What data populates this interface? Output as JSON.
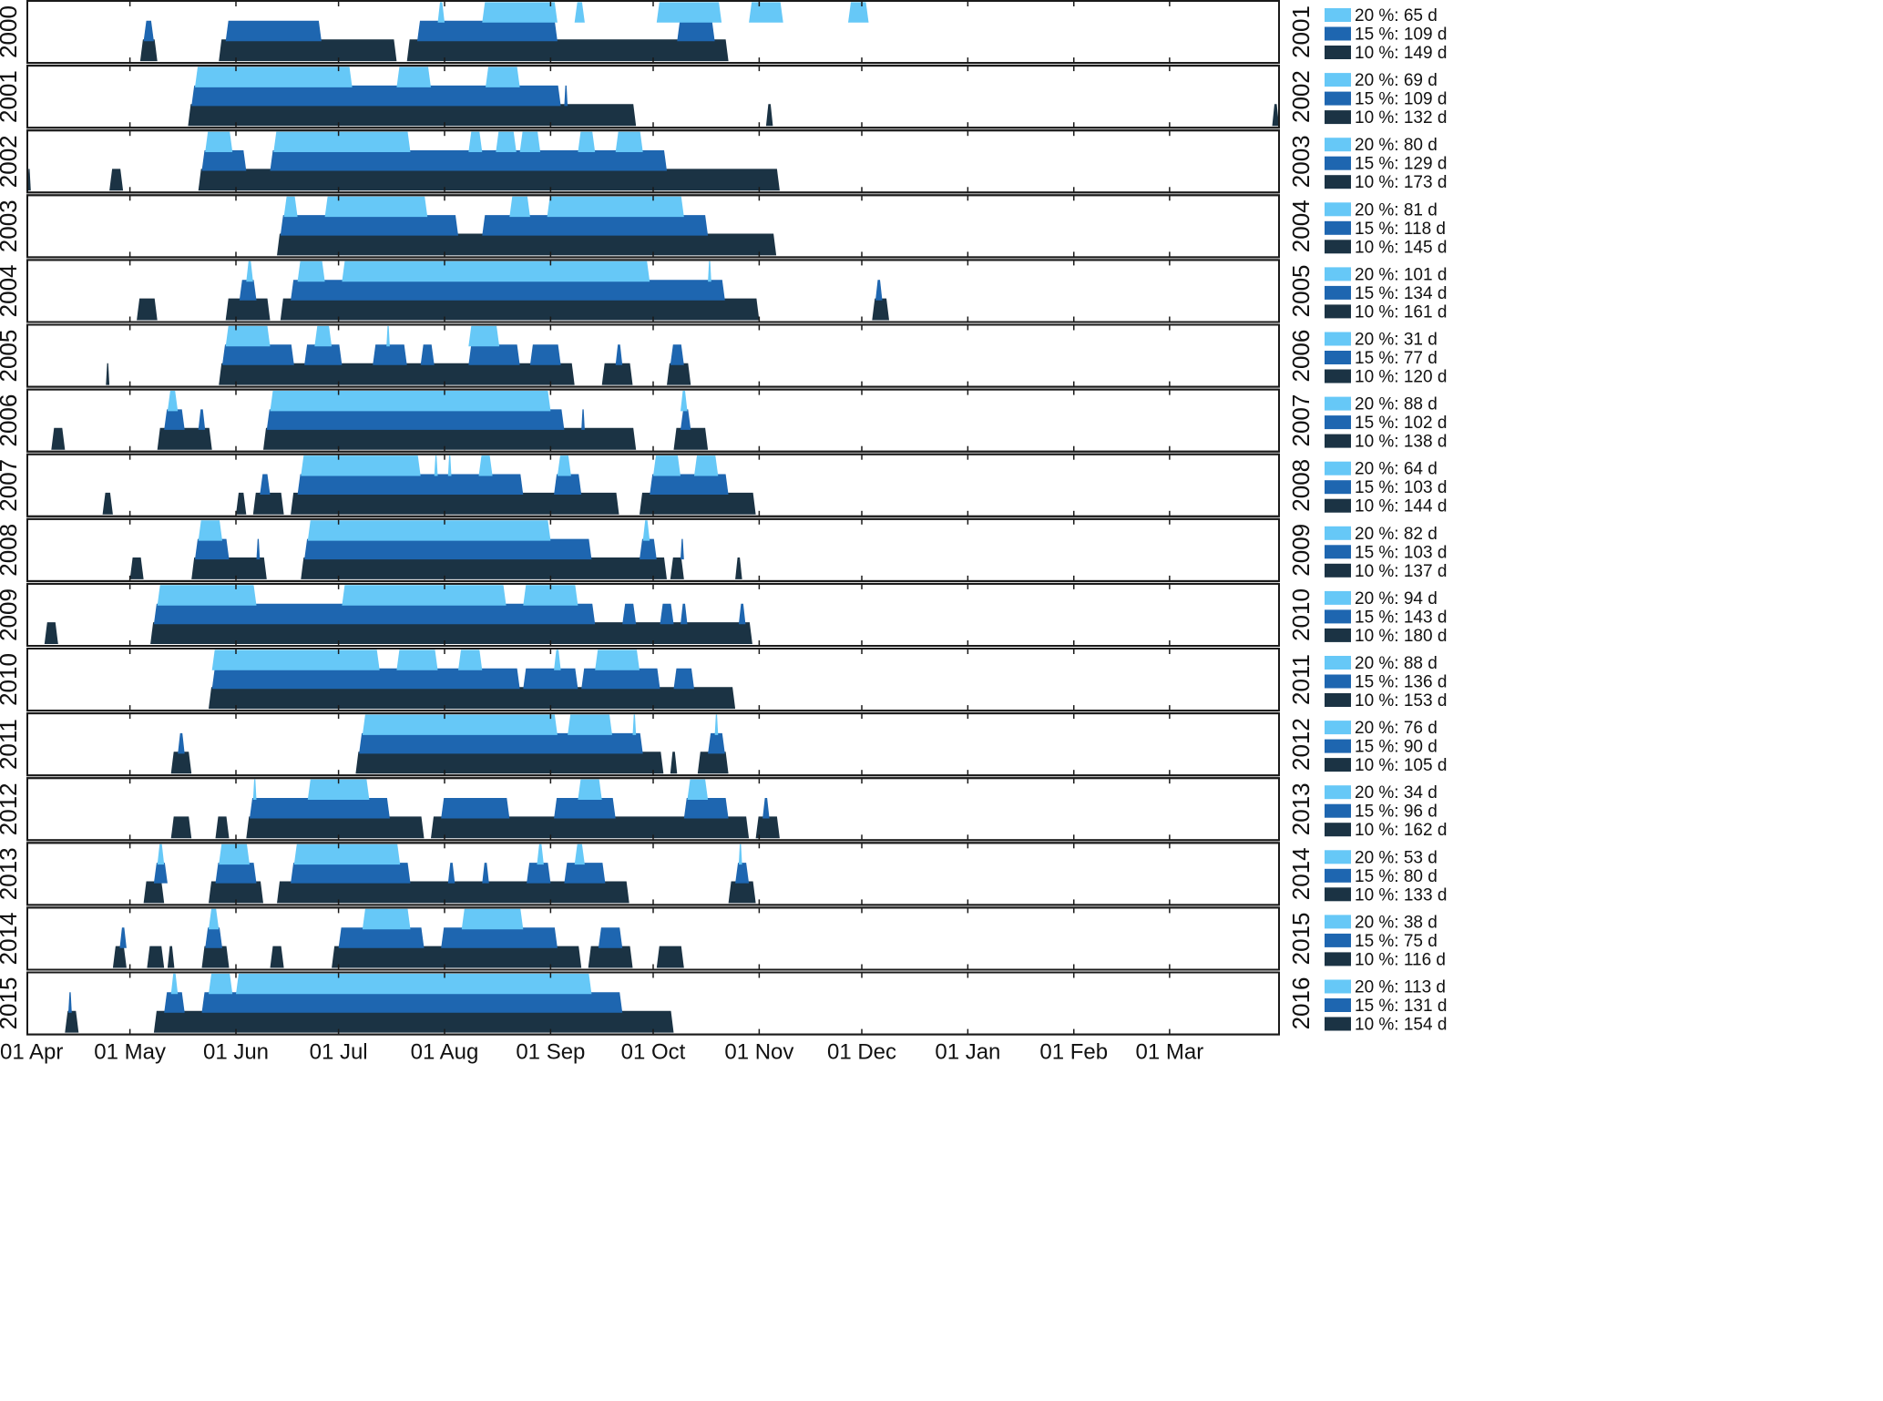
{
  "chart_data": {
    "type": "area",
    "title": "",
    "xlabel": "",
    "ylabel": "",
    "x_tick_labels": [
      "01 Apr",
      "01 May",
      "01 Jun",
      "01 Jul",
      "01 Aug",
      "01 Sep",
      "01 Oct",
      "01 Nov",
      "01 Dec",
      "01 Jan",
      "01 Feb",
      "01 Mar"
    ],
    "x_range_days": [
      0,
      366
    ],
    "legend_placement": "right of each panel",
    "colors": {
      "t20": "#66c8f7",
      "t15": "#1e66b0",
      "t10": "#1b3344"
    },
    "panels": [
      {
        "season": "2000",
        "right_year": "2001",
        "legend": [
          "20 %: 65 d",
          "15 %: 109 d",
          "10 %: 149 d"
        ],
        "t20": [
          [
            120,
            122
          ],
          [
            133,
            155
          ],
          [
            160,
            163
          ],
          [
            184,
            203
          ],
          [
            211,
            221
          ],
          [
            240,
            246
          ]
        ],
        "t15": [
          [
            34,
            37
          ],
          [
            58,
            86
          ],
          [
            114,
            155
          ],
          [
            190,
            201
          ]
        ],
        "t10": [
          [
            33,
            38
          ],
          [
            56,
            108
          ],
          [
            111,
            205
          ]
        ]
      },
      {
        "season": "2001",
        "right_year": "2002",
        "legend": [
          "20 %: 69 d",
          "15 %: 109 d",
          "10 %: 132 d"
        ],
        "t20": [
          [
            49,
            95
          ],
          [
            108,
            118
          ],
          [
            134,
            144
          ]
        ],
        "t15": [
          [
            48,
            156
          ],
          [
            157,
            158
          ]
        ],
        "t10": [
          [
            47,
            178
          ],
          [
            216,
            218
          ],
          [
            364,
            366
          ]
        ]
      },
      {
        "season": "2002",
        "right_year": "2003",
        "legend": [
          "20 %: 80 d",
          "15 %: 129 d",
          "10 %: 173 d"
        ],
        "t20": [
          [
            52,
            60
          ],
          [
            72,
            112
          ],
          [
            129,
            133
          ],
          [
            137,
            143
          ],
          [
            144,
            150
          ],
          [
            161,
            166
          ],
          [
            172,
            180
          ]
        ],
        "t15": [
          [
            51,
            64
          ],
          [
            71,
            187
          ]
        ],
        "t10": [
          [
            0,
            1
          ],
          [
            24,
            28
          ],
          [
            50,
            220
          ]
        ]
      },
      {
        "season": "2003",
        "right_year": "2004",
        "legend": [
          "20 %: 81 d",
          "15 %: 118 d",
          "10 %: 145 d"
        ],
        "t20": [
          [
            75,
            79
          ],
          [
            87,
            117
          ],
          [
            141,
            147
          ],
          [
            152,
            192
          ]
        ],
        "t15": [
          [
            74,
            126
          ],
          [
            133,
            199
          ]
        ],
        "t10": [
          [
            73,
            219
          ]
        ]
      },
      {
        "season": "2004",
        "right_year": "2005",
        "legend": [
          "20 %: 101 d",
          "15 %: 134 d",
          "10 %: 161 d"
        ],
        "t20": [
          [
            64,
            66
          ],
          [
            79,
            87
          ],
          [
            92,
            182
          ],
          [
            199,
            200
          ]
        ],
        "t15": [
          [
            62,
            67
          ],
          [
            77,
            204
          ],
          [
            248,
            250
          ]
        ],
        "t10": [
          [
            32,
            38
          ],
          [
            58,
            71
          ],
          [
            74,
            214
          ],
          [
            247,
            252
          ]
        ]
      },
      {
        "season": "2005",
        "right_year": "2006",
        "legend": [
          "20 %: 31 d",
          "15 %: 77 d",
          "10 %: 120 d"
        ],
        "t20": [
          [
            58,
            71
          ],
          [
            84,
            89
          ],
          [
            105,
            106
          ],
          [
            129,
            138
          ]
        ],
        "t15": [
          [
            57,
            78
          ],
          [
            81,
            92
          ],
          [
            101,
            111
          ],
          [
            115,
            119
          ],
          [
            129,
            144
          ],
          [
            147,
            156
          ],
          [
            172,
            174
          ],
          [
            188,
            192
          ]
        ],
        "t10": [
          [
            23,
            24
          ],
          [
            56,
            160
          ],
          [
            168,
            177
          ],
          [
            187,
            194
          ]
        ]
      },
      {
        "season": "2006",
        "right_year": "2007",
        "legend": [
          "20 %: 88 d",
          "15 %: 102 d",
          "10 %: 138 d"
        ],
        "t20": [
          [
            41,
            44
          ],
          [
            71,
            153
          ],
          [
            191,
            193
          ]
        ],
        "t15": [
          [
            40,
            46
          ],
          [
            50,
            52
          ],
          [
            70,
            157
          ],
          [
            162,
            163
          ],
          [
            191,
            194
          ]
        ],
        "t10": [
          [
            7,
            11
          ],
          [
            38,
            54
          ],
          [
            69,
            178
          ],
          [
            189,
            199
          ]
        ]
      },
      {
        "season": "2007",
        "right_year": "2008",
        "legend": [
          "20 %: 64 d",
          "15 %: 103 d",
          "10 %: 144 d"
        ],
        "t20": [
          [
            80,
            115
          ],
          [
            119,
            120
          ],
          [
            123,
            124
          ],
          [
            132,
            136
          ],
          [
            155,
            159
          ],
          [
            183,
            191
          ],
          [
            195,
            202
          ]
        ],
        "t15": [
          [
            68,
            71
          ],
          [
            79,
            145
          ],
          [
            154,
            162
          ],
          [
            182,
            205
          ]
        ],
        "t10": [
          [
            22,
            25
          ],
          [
            61,
            64
          ],
          [
            66,
            75
          ],
          [
            77,
            173
          ],
          [
            179,
            213
          ]
        ]
      },
      {
        "season": "2008",
        "right_year": "2009",
        "legend": [
          "20 %: 82 d",
          "15 %: 103 d",
          "10 %: 137 d"
        ],
        "t20": [
          [
            50,
            57
          ],
          [
            82,
            153
          ],
          [
            180,
            182
          ]
        ],
        "t15": [
          [
            49,
            59
          ],
          [
            67,
            68
          ],
          [
            81,
            165
          ],
          [
            179,
            184
          ],
          [
            191,
            192
          ]
        ],
        "t10": [
          [
            30,
            34
          ],
          [
            48,
            70
          ],
          [
            80,
            187
          ],
          [
            188,
            192
          ],
          [
            207,
            209
          ]
        ]
      },
      {
        "season": "2009",
        "right_year": "2010",
        "legend": [
          "20 %: 94 d",
          "15 %: 143 d",
          "10 %: 180 d"
        ],
        "t20": [
          [
            38,
            67
          ],
          [
            92,
            140
          ],
          [
            145,
            161
          ]
        ],
        "t15": [
          [
            37,
            166
          ],
          [
            174,
            178
          ],
          [
            185,
            189
          ],
          [
            191,
            193
          ],
          [
            208,
            210
          ]
        ],
        "t10": [
          [
            5,
            9
          ],
          [
            36,
            212
          ]
        ]
      },
      {
        "season": "2010",
        "right_year": "2011",
        "legend": [
          "20 %: 88 d",
          "15 %: 136 d",
          "10 %: 153 d"
        ],
        "t20": [
          [
            54,
            103
          ],
          [
            108,
            120
          ],
          [
            126,
            133
          ],
          [
            154,
            156
          ],
          [
            166,
            179
          ]
        ],
        "t15": [
          [
            54,
            144
          ],
          [
            145,
            161
          ],
          [
            162,
            185
          ],
          [
            189,
            195
          ]
        ],
        "t10": [
          [
            53,
            207
          ]
        ]
      },
      {
        "season": "2011",
        "right_year": "2012",
        "legend": [
          "20 %: 76 d",
          "15 %: 90 d",
          "10 %: 105 d"
        ],
        "t20": [
          [
            98,
            155
          ],
          [
            158,
            171
          ],
          [
            177,
            178
          ],
          [
            201,
            202
          ]
        ],
        "t15": [
          [
            44,
            46
          ],
          [
            97,
            180
          ],
          [
            199,
            204
          ]
        ],
        "t10": [
          [
            42,
            48
          ],
          [
            96,
            186
          ],
          [
            188,
            190
          ],
          [
            196,
            205
          ]
        ]
      },
      {
        "season": "2012",
        "right_year": "2013",
        "legend": [
          "20 %: 34 d",
          "15 %: 96 d",
          "10 %: 162 d"
        ],
        "t20": [
          [
            66,
            67
          ],
          [
            82,
            100
          ],
          [
            161,
            168
          ],
          [
            193,
            199
          ]
        ],
        "t15": [
          [
            65,
            106
          ],
          [
            121,
            141
          ],
          [
            154,
            172
          ],
          [
            192,
            205
          ],
          [
            215,
            217
          ]
        ],
        "t10": [
          [
            42,
            48
          ],
          [
            55,
            59
          ],
          [
            64,
            116
          ],
          [
            118,
            211
          ],
          [
            213,
            220
          ]
        ]
      },
      {
        "season": "2013",
        "right_year": "2014",
        "legend": [
          "20 %: 53 d",
          "15 %: 80 d",
          "10 %: 133 d"
        ],
        "t20": [
          [
            38,
            40
          ],
          [
            56,
            65
          ],
          [
            78,
            109
          ],
          [
            149,
            151
          ],
          [
            160,
            163
          ],
          [
            208,
            209
          ]
        ],
        "t15": [
          [
            37,
            41
          ],
          [
            55,
            67
          ],
          [
            77,
            112
          ],
          [
            123,
            125
          ],
          [
            133,
            135
          ],
          [
            146,
            153
          ],
          [
            157,
            169
          ],
          [
            207,
            211
          ]
        ],
        "t10": [
          [
            34,
            40
          ],
          [
            53,
            69
          ],
          [
            73,
            176
          ],
          [
            205,
            213
          ]
        ]
      },
      {
        "season": "2014",
        "right_year": "2015",
        "legend": [
          "20 %: 38 d",
          "15 %: 75 d",
          "10 %: 116 d"
        ],
        "t20": [
          [
            53,
            56
          ],
          [
            98,
            112
          ],
          [
            127,
            145
          ]
        ],
        "t15": [
          [
            27,
            29
          ],
          [
            52,
            57
          ],
          [
            91,
            116
          ],
          [
            121,
            155
          ],
          [
            167,
            174
          ]
        ],
        "t10": [
          [
            25,
            29
          ],
          [
            35,
            40
          ],
          [
            41,
            43
          ],
          [
            51,
            59
          ],
          [
            71,
            75
          ],
          [
            89,
            162
          ],
          [
            164,
            177
          ],
          [
            184,
            192
          ]
        ]
      },
      {
        "season": "2015",
        "right_year": "2016",
        "legend": [
          "20 %: 113 d",
          "15 %: 131 d",
          "10 %: 154 d"
        ],
        "t20": [
          [
            42,
            44
          ],
          [
            53,
            60
          ],
          [
            61,
            165
          ]
        ],
        "t15": [
          [
            12,
            13
          ],
          [
            40,
            46
          ],
          [
            51,
            174
          ]
        ],
        "t10": [
          [
            11,
            15
          ],
          [
            37,
            189
          ]
        ]
      }
    ]
  }
}
